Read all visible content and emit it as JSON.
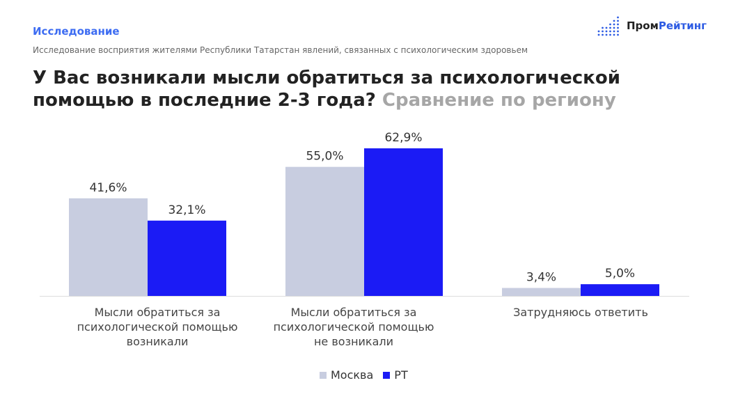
{
  "header": {
    "kicker": "Исследование",
    "subtitle": "Исследование восприятия жителями Республики Татарстан явлений, связанных с психологическим здоровьем",
    "title_main": "У Вас возникали мысли обратиться за психологической помощью в последние 2-3 года?",
    "title_secondary": "Сравнение по региону"
  },
  "logo": {
    "part1": "Пром",
    "part2": "Рейтинг"
  },
  "chart_data": {
    "type": "bar",
    "categories": [
      "Мысли обратиться за психологической помощью возникали",
      "Мысли обратиться за психологической помощью не возникали",
      "Затрудняюсь ответить"
    ],
    "series": [
      {
        "name": "Москва",
        "values": [
          41.6,
          55.0,
          3.4
        ],
        "labels": [
          "41,6%",
          "55,0%",
          "3,4%"
        ],
        "color": "#c8cde0"
      },
      {
        "name": "РТ",
        "values": [
          32.1,
          62.9,
          5.0
        ],
        "labels": [
          "32,1%",
          "62,9%",
          "5,0%"
        ],
        "color": "#1b1bf5"
      }
    ],
    "legend": "bottom",
    "grid": false,
    "ylim": [
      0,
      70
    ]
  }
}
